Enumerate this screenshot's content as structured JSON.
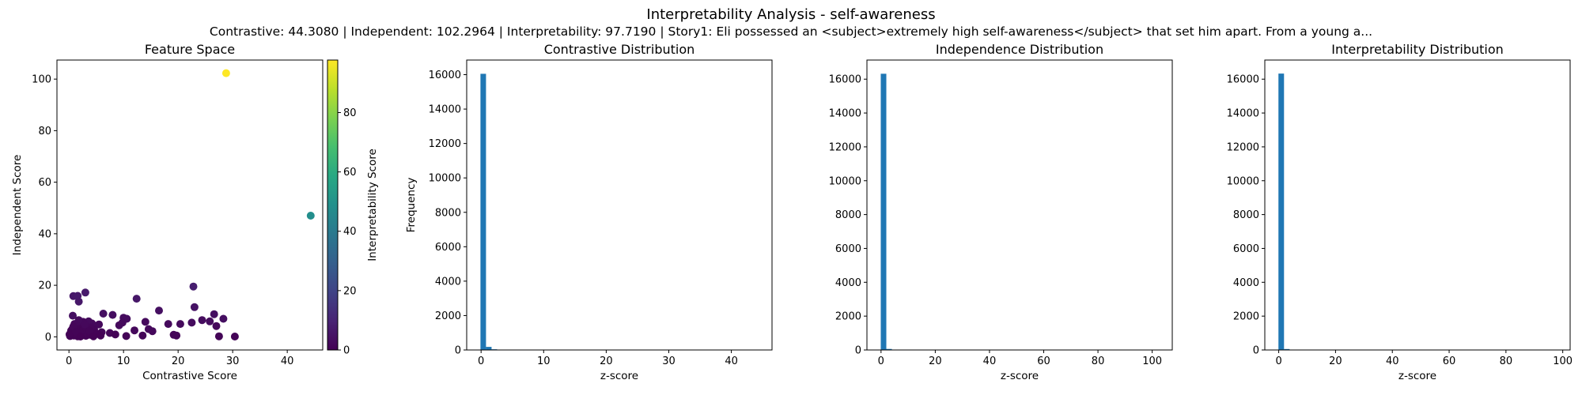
{
  "figure": {
    "title": "Interpretability Analysis - self-awareness",
    "subtitle": "Contrastive: 44.3080 | Independent: 102.2964 | Interpretability: 97.7190 | Story1: Eli possessed an <subject>extremely high self-awareness</subject> that set him apart. From a young a..."
  },
  "colors": {
    "bar": "#1f77b4",
    "axis": "#000000"
  },
  "chart_data": [
    {
      "type": "scatter",
      "title": "Feature Space",
      "xlabel": "Contrastive Score",
      "ylabel": "Independent Score",
      "xlim": [
        -2.2,
        46.5
      ],
      "ylim": [
        -5.1,
        107.4
      ],
      "xticks": [
        0,
        10,
        20,
        30,
        40
      ],
      "yticks": [
        0,
        20,
        40,
        60,
        80,
        100
      ],
      "colormap": "viridis",
      "colorbar": {
        "label": "Interpretability Score",
        "range": [
          0,
          97.7
        ],
        "ticks": [
          0,
          20,
          40,
          60,
          80
        ]
      },
      "points": [
        {
          "x": 28.8,
          "y": 102.3,
          "c": 97.7
        },
        {
          "x": 44.3,
          "y": 47.0,
          "c": 48.0
        },
        {
          "x": 22.8,
          "y": 19.5,
          "c": 8.0
        },
        {
          "x": 3.0,
          "y": 17.2,
          "c": 7.0
        },
        {
          "x": 0.8,
          "y": 15.8,
          "c": 6.0
        },
        {
          "x": 1.6,
          "y": 15.9,
          "c": 6.5
        },
        {
          "x": 12.4,
          "y": 14.8,
          "c": 6.0
        },
        {
          "x": 1.8,
          "y": 13.7,
          "c": 6.0
        },
        {
          "x": 23.0,
          "y": 11.5,
          "c": 5.0
        },
        {
          "x": 0.7,
          "y": 8.2,
          "c": 4.0
        },
        {
          "x": 6.3,
          "y": 9.0,
          "c": 4.0
        },
        {
          "x": 8.0,
          "y": 8.5,
          "c": 3.5
        },
        {
          "x": 16.5,
          "y": 10.2,
          "c": 4.0
        },
        {
          "x": 26.6,
          "y": 8.8,
          "c": 4.0
        },
        {
          "x": 28.3,
          "y": 7.0,
          "c": 4.0
        },
        {
          "x": 24.4,
          "y": 6.5,
          "c": 3.0
        },
        {
          "x": 25.8,
          "y": 6.0,
          "c": 3.0
        },
        {
          "x": 22.5,
          "y": 5.5,
          "c": 3.0
        },
        {
          "x": 10.0,
          "y": 7.4,
          "c": 3.0
        },
        {
          "x": 10.6,
          "y": 7.0,
          "c": 3.0
        },
        {
          "x": 9.2,
          "y": 4.5,
          "c": 2.5
        },
        {
          "x": 9.8,
          "y": 5.5,
          "c": 2.5
        },
        {
          "x": 14.0,
          "y": 5.8,
          "c": 2.5
        },
        {
          "x": 18.2,
          "y": 5.0,
          "c": 2.5
        },
        {
          "x": 20.4,
          "y": 5.0,
          "c": 2.5
        },
        {
          "x": 12.0,
          "y": 2.5,
          "c": 2.0
        },
        {
          "x": 14.6,
          "y": 3.0,
          "c": 2.0
        },
        {
          "x": 15.3,
          "y": 2.2,
          "c": 2.0
        },
        {
          "x": 19.2,
          "y": 0.8,
          "c": 1.5
        },
        {
          "x": 19.7,
          "y": 0.5,
          "c": 1.5
        },
        {
          "x": 27.0,
          "y": 4.2,
          "c": 2.0
        },
        {
          "x": 30.4,
          "y": 0.1,
          "c": 1.0
        },
        {
          "x": 27.5,
          "y": 0.2,
          "c": 1.0
        },
        {
          "x": 13.5,
          "y": 0.5,
          "c": 1.0
        },
        {
          "x": 10.5,
          "y": 0.3,
          "c": 1.0
        },
        {
          "x": 7.5,
          "y": 1.5,
          "c": 1.5
        },
        {
          "x": 6.0,
          "y": 1.8,
          "c": 1.5
        },
        {
          "x": 5.5,
          "y": 4.8,
          "c": 2.0
        },
        {
          "x": 4.6,
          "y": 3.0,
          "c": 1.5
        },
        {
          "x": 4.2,
          "y": 5.2,
          "c": 2.0
        },
        {
          "x": 3.6,
          "y": 6.0,
          "c": 2.5
        },
        {
          "x": 3.2,
          "y": 4.0,
          "c": 2.0
        },
        {
          "x": 2.6,
          "y": 5.8,
          "c": 2.0
        },
        {
          "x": 2.2,
          "y": 3.5,
          "c": 1.5
        },
        {
          "x": 1.8,
          "y": 6.5,
          "c": 2.5
        },
        {
          "x": 1.4,
          "y": 4.5,
          "c": 2.0
        },
        {
          "x": 1.0,
          "y": 5.0,
          "c": 2.0
        },
        {
          "x": 0.6,
          "y": 3.0,
          "c": 1.5
        },
        {
          "x": 0.3,
          "y": 1.5,
          "c": 1.0
        },
        {
          "x": 0.2,
          "y": 0.3,
          "c": 0.5
        },
        {
          "x": 0.5,
          "y": 0.8,
          "c": 0.5
        },
        {
          "x": 0.9,
          "y": 0.5,
          "c": 0.5
        },
        {
          "x": 1.2,
          "y": 1.0,
          "c": 0.5
        },
        {
          "x": 1.6,
          "y": 0.2,
          "c": 0.5
        },
        {
          "x": 2.0,
          "y": 1.2,
          "c": 0.5
        },
        {
          "x": 2.4,
          "y": 0.6,
          "c": 0.5
        },
        {
          "x": 2.8,
          "y": 1.8,
          "c": 1.0
        },
        {
          "x": 3.1,
          "y": 0.4,
          "c": 0.5
        },
        {
          "x": 3.5,
          "y": 1.5,
          "c": 1.0
        },
        {
          "x": 3.9,
          "y": 0.8,
          "c": 0.5
        },
        {
          "x": 4.3,
          "y": 2.0,
          "c": 1.0
        },
        {
          "x": 4.8,
          "y": 0.9,
          "c": 0.5
        },
        {
          "x": 5.2,
          "y": 1.2,
          "c": 0.5
        },
        {
          "x": 0.4,
          "y": 2.4,
          "c": 1.0
        },
        {
          "x": 1.1,
          "y": 2.8,
          "c": 1.0
        },
        {
          "x": 1.9,
          "y": 3.0,
          "c": 1.0
        },
        {
          "x": 2.5,
          "y": 2.5,
          "c": 1.0
        },
        {
          "x": 3.3,
          "y": 2.8,
          "c": 1.0
        },
        {
          "x": 4.0,
          "y": 3.6,
          "c": 1.5
        },
        {
          "x": 0.8,
          "y": 4.0,
          "c": 1.5
        },
        {
          "x": 2.9,
          "y": 4.8,
          "c": 2.0
        },
        {
          "x": 3.8,
          "y": 2.3,
          "c": 1.0
        },
        {
          "x": 0.1,
          "y": 0.9,
          "c": 0.5
        },
        {
          "x": 1.3,
          "y": 1.9,
          "c": 0.8
        },
        {
          "x": 2.1,
          "y": 0.1,
          "c": 0.3
        },
        {
          "x": 4.5,
          "y": 0.2,
          "c": 0.3
        },
        {
          "x": 5.8,
          "y": 0.5,
          "c": 0.3
        },
        {
          "x": 8.5,
          "y": 0.9,
          "c": 0.5
        }
      ]
    },
    {
      "type": "bar",
      "title": "Contrastive Distribution",
      "xlabel": "z-score",
      "ylabel": "Frequency",
      "xlim": [
        -2.3,
        46.5
      ],
      "ylim": [
        0,
        16850
      ],
      "xticks": [
        0,
        10,
        20,
        30,
        40
      ],
      "yticks": [
        0,
        2000,
        4000,
        6000,
        8000,
        10000,
        12000,
        14000,
        16000
      ],
      "bin_start": -0.1,
      "bin_width": 0.888,
      "counts": [
        16050,
        180,
        40,
        15,
        10,
        6,
        4,
        2,
        2,
        1
      ]
    },
    {
      "type": "bar",
      "title": "Independence Distribution",
      "xlabel": "z-score",
      "ylabel": "",
      "xlim": [
        -5.2,
        107.4
      ],
      "ylim": [
        0,
        17130
      ],
      "xticks": [
        0,
        20,
        40,
        60,
        80,
        100
      ],
      "yticks": [
        0,
        2000,
        4000,
        6000,
        8000,
        10000,
        12000,
        14000,
        16000
      ],
      "bin_start": -0.1,
      "bin_width": 2.05,
      "counts": [
        16320,
        60,
        15,
        6,
        3,
        2
      ]
    },
    {
      "type": "bar",
      "title": "Interpretability Distribution",
      "xlabel": "z-score",
      "ylabel": "",
      "xlim": [
        -4.9,
        102.6
      ],
      "ylim": [
        0,
        17130
      ],
      "xticks": [
        0,
        20,
        40,
        60,
        80,
        100
      ],
      "yticks": [
        0,
        2000,
        4000,
        6000,
        8000,
        10000,
        12000,
        14000,
        16000
      ],
      "bin_start": -0.1,
      "bin_width": 1.96,
      "counts": [
        16330,
        55,
        12,
        5,
        2
      ]
    }
  ]
}
